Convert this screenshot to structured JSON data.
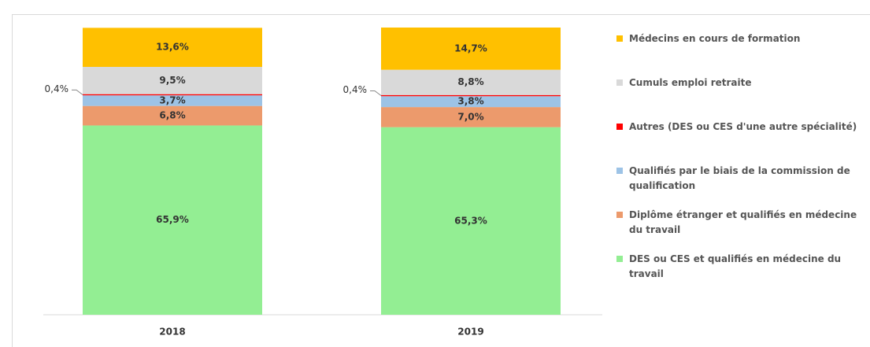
{
  "chart_data": {
    "type": "stacked_bar",
    "categories": [
      "2018",
      "2019"
    ],
    "ylim": [
      0,
      100
    ],
    "series": [
      {
        "name": "DES ou CES et qualifiés en médecine du travail",
        "color": "#93ee93",
        "values": [
          65.9,
          65.3
        ],
        "value_labels": [
          "65,9%",
          "65,3%"
        ]
      },
      {
        "name": "Diplôme étranger et qualifiés en médecine du travail",
        "color": "#ec9a6c",
        "values": [
          6.8,
          7.0
        ],
        "value_labels": [
          "6,8%",
          "7,0%"
        ]
      },
      {
        "name": "Qualifiés par le biais de la commission de qualification",
        "color": "#9dc3e6",
        "values": [
          3.7,
          3.8
        ],
        "value_labels": [
          "3,7%",
          "3,8%"
        ]
      },
      {
        "name": "Autres (DES ou CES d'une autre spécialité)",
        "color": "#ff0000",
        "values": [
          0.4,
          0.4
        ],
        "value_labels": [
          "0,4%",
          "0,4%"
        ]
      },
      {
        "name": "Cumuls emploi retraite",
        "color": "#d9d9d9",
        "values": [
          9.5,
          8.8
        ],
        "value_labels": [
          "9,5%",
          "8,8%"
        ]
      },
      {
        "name": "Médecins en cours de formation",
        "color": "#ffc000",
        "values": [
          13.6,
          14.7
        ],
        "value_labels": [
          "13,6%",
          "14,7%"
        ]
      }
    ]
  }
}
